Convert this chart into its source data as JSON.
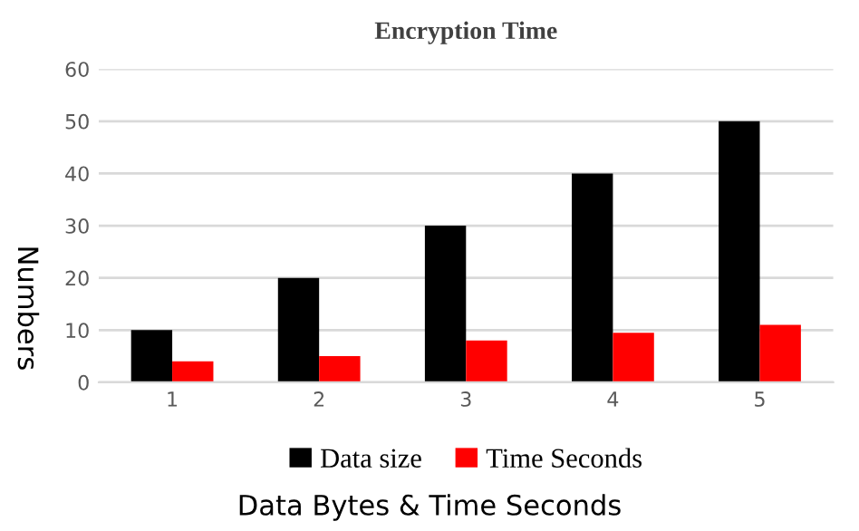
{
  "chart_data": {
    "type": "bar",
    "title": "Encryption Time",
    "xlabel": "Data Bytes & Time Seconds",
    "ylabel": "Numbers",
    "categories": [
      "1",
      "2",
      "3",
      "4",
      "5"
    ],
    "series": [
      {
        "name": "Data size",
        "color": "#000000",
        "values": [
          10,
          20,
          30,
          40,
          50
        ]
      },
      {
        "name": "Time Seconds",
        "color": "#ff0000",
        "values": [
          4,
          5,
          8,
          9.5,
          11
        ]
      }
    ],
    "ylim": [
      0,
      60
    ],
    "yticks": [
      0,
      10,
      20,
      30,
      40,
      50,
      60
    ],
    "grid": "y",
    "legend": "bottom"
  }
}
